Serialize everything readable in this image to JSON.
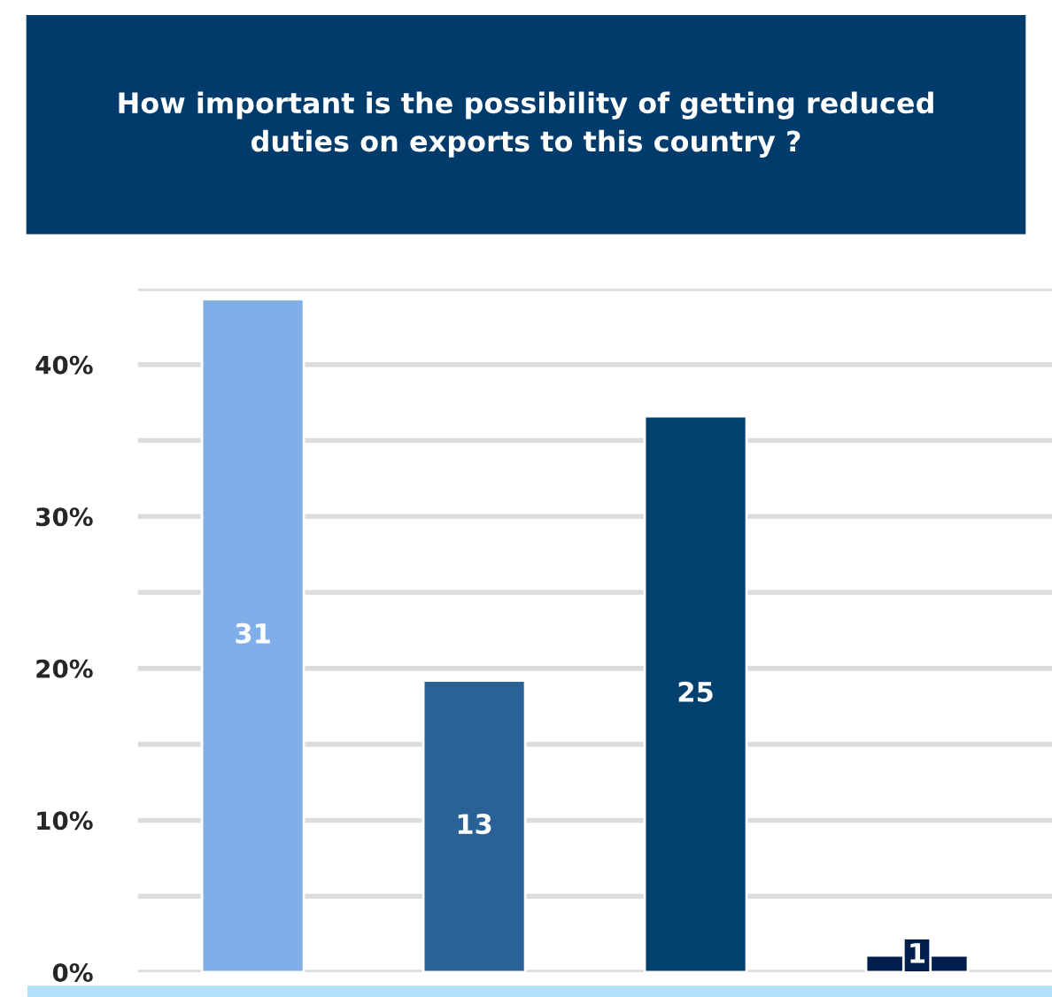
{
  "chart_data": {
    "type": "bar",
    "title": "How important is the possibility of getting reduced\nduties on exports to this country ?",
    "categories": [
      null,
      null,
      null,
      null
    ],
    "values": [
      44.3,
      19.2,
      36.6,
      1.1
    ],
    "colors": [
      "#7faee8",
      "#2a6196",
      "#02406e",
      "#001f4d"
    ],
    "annotations": [
      "31",
      "13",
      "25",
      "1"
    ],
    "ylim": [
      0,
      45
    ],
    "yticks": [
      {
        "value": 0,
        "label": "0%"
      },
      {
        "value": 5,
        "label": null
      },
      {
        "value": 10,
        "label": "10%"
      },
      {
        "value": 15,
        "label": null
      },
      {
        "value": 20,
        "label": "20%"
      },
      {
        "value": 25,
        "label": null
      },
      {
        "value": 30,
        "label": "30%"
      },
      {
        "value": 35,
        "label": null
      },
      {
        "value": 40,
        "label": "40%"
      },
      {
        "value": 45,
        "label": null
      }
    ],
    "grid": "y",
    "legend": false
  }
}
